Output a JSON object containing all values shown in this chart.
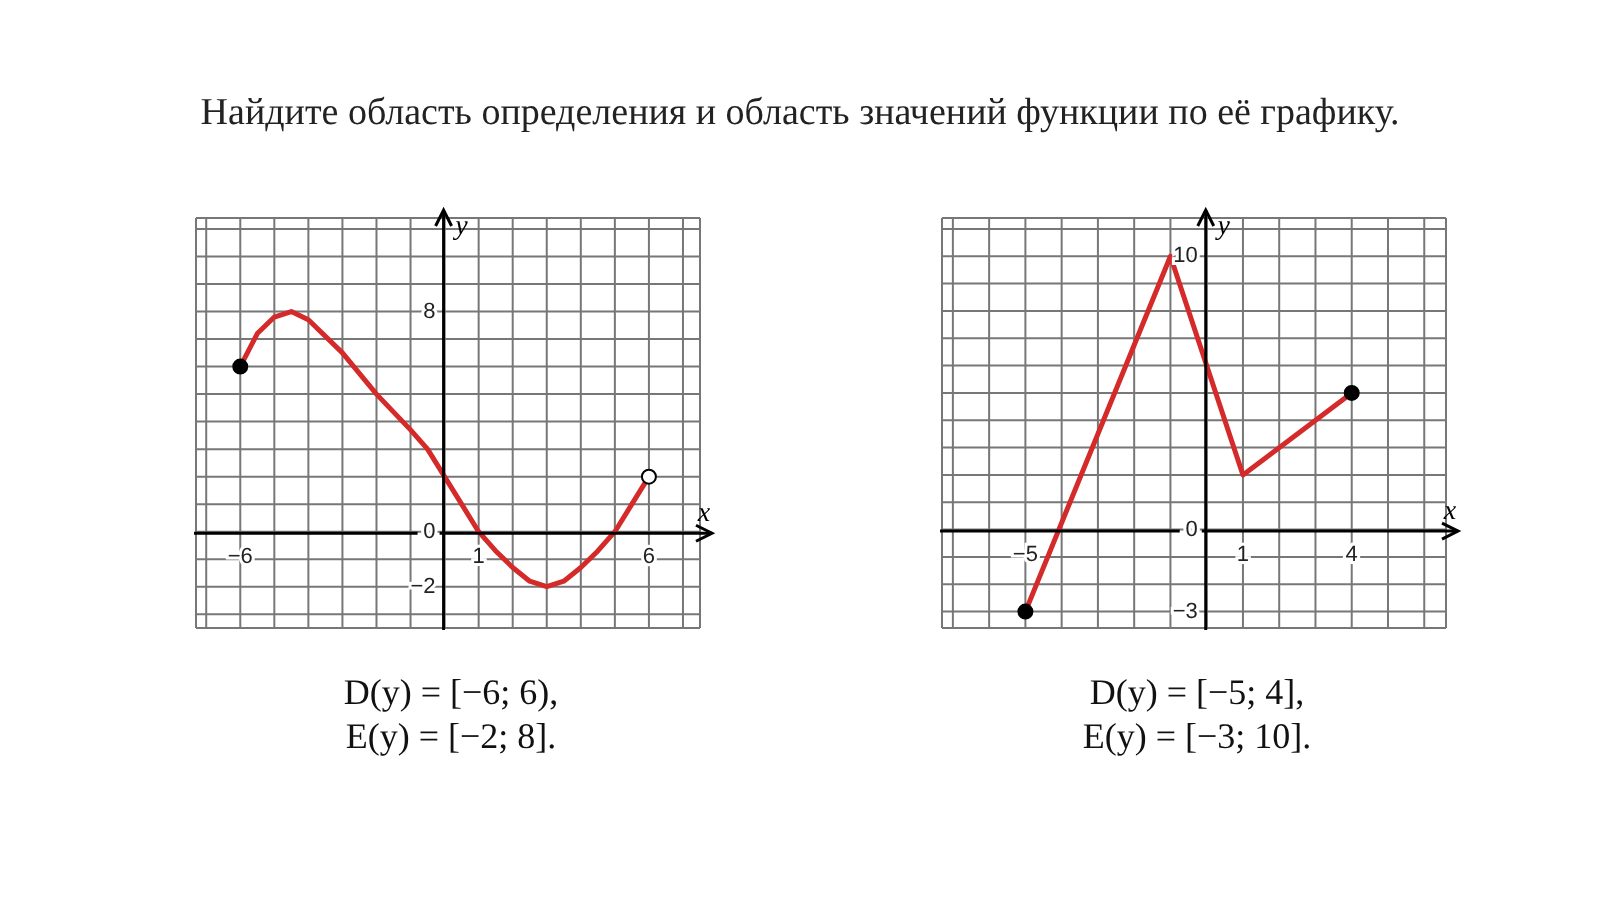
{
  "chart_data": [
    {
      "type": "line",
      "title": "Найдите область определения и область значений функции по её графику.",
      "xlabel": "x",
      "ylabel": "y",
      "xlim": [
        -7.3,
        7.5
      ],
      "ylim": [
        -3.5,
        11.4
      ],
      "xticks": [
        {
          "value": -7,
          "label": null
        },
        {
          "value": -6,
          "label": "−6"
        },
        {
          "value": -5,
          "label": null
        },
        {
          "value": -4,
          "label": null
        },
        {
          "value": -3,
          "label": null
        },
        {
          "value": -2,
          "label": null
        },
        {
          "value": -1,
          "label": null
        },
        {
          "value": 0,
          "label": null
        },
        {
          "value": 1,
          "label": "1"
        },
        {
          "value": 2,
          "label": null
        },
        {
          "value": 3,
          "label": null
        },
        {
          "value": 4,
          "label": null
        },
        {
          "value": 5,
          "label": null
        },
        {
          "value": 6,
          "label": "6"
        },
        {
          "value": 7,
          "label": null
        }
      ],
      "yticks": [
        {
          "value": -3,
          "label": null
        },
        {
          "value": -2,
          "label": "−2"
        },
        {
          "value": -1,
          "label": null
        },
        {
          "value": 0,
          "label": "0"
        },
        {
          "value": 1,
          "label": null
        },
        {
          "value": 2,
          "label": null
        },
        {
          "value": 3,
          "label": null
        },
        {
          "value": 4,
          "label": null
        },
        {
          "value": 5,
          "label": null
        },
        {
          "value": 6,
          "label": null
        },
        {
          "value": 7,
          "label": null
        },
        {
          "value": 8,
          "label": "8"
        },
        {
          "value": 9,
          "label": null
        },
        {
          "value": 10,
          "label": null
        },
        {
          "value": 11,
          "label": null
        }
      ],
      "grid": true,
      "legend": false,
      "series": [
        {
          "type": "line",
          "color": "#d42a2a",
          "x": [
            -6,
            -5.5,
            -5,
            -4.5,
            -4,
            -3,
            -2,
            -1,
            -0.5,
            0,
            0.5,
            1,
            1.5,
            2,
            2.5,
            3,
            3.5,
            4,
            4.5,
            5,
            5.5,
            6
          ],
          "values": [
            6,
            7.2,
            7.8,
            8,
            7.7,
            6.5,
            5,
            3.7,
            3,
            2,
            1,
            0,
            -0.7,
            -1.3,
            -1.8,
            -2,
            -1.8,
            -1.3,
            -0.7,
            0,
            1,
            2
          ]
        },
        {
          "type": "scatter",
          "color": "#000000",
          "x": [
            -6
          ],
          "values": [
            6
          ]
        },
        {
          "type": "scatter",
          "color": "#ffffff",
          "x": [
            6
          ],
          "values": [
            2
          ]
        }
      ],
      "annotations": [
        "D(y) = [−6; 6),",
        "E(y) = [−2; 8]."
      ]
    },
    {
      "type": "line",
      "xlabel": "x",
      "ylabel": "y",
      "xlim": [
        -7.3,
        6.6
      ],
      "ylim": [
        -3.6,
        11.4
      ],
      "xticks": [
        {
          "value": -7,
          "label": null
        },
        {
          "value": -6,
          "label": null
        },
        {
          "value": -5,
          "label": "−5"
        },
        {
          "value": -4,
          "label": null
        },
        {
          "value": -3,
          "label": null
        },
        {
          "value": -2,
          "label": null
        },
        {
          "value": -1,
          "label": null
        },
        {
          "value": 0,
          "label": null
        },
        {
          "value": 1,
          "label": "1"
        },
        {
          "value": 2,
          "label": null
        },
        {
          "value": 3,
          "label": null
        },
        {
          "value": 4,
          "label": "4"
        },
        {
          "value": 5,
          "label": null
        },
        {
          "value": 6,
          "label": null
        }
      ],
      "yticks": [
        {
          "value": -3,
          "label": "−3"
        },
        {
          "value": -2,
          "label": null
        },
        {
          "value": -1,
          "label": null
        },
        {
          "value": 0,
          "label": "0"
        },
        {
          "value": 1,
          "label": null
        },
        {
          "value": 2,
          "label": null
        },
        {
          "value": 3,
          "label": null
        },
        {
          "value": 4,
          "label": null
        },
        {
          "value": 5,
          "label": null
        },
        {
          "value": 6,
          "label": null
        },
        {
          "value": 7,
          "label": null
        },
        {
          "value": 8,
          "label": null
        },
        {
          "value": 9,
          "label": null
        },
        {
          "value": 10,
          "label": "10"
        },
        {
          "value": 11,
          "label": null
        }
      ],
      "grid": true,
      "legend": false,
      "series": [
        {
          "type": "line",
          "color": "#d42a2a",
          "x": [
            -5,
            -1,
            1,
            4
          ],
          "values": [
            -3,
            10,
            2,
            5
          ]
        },
        {
          "type": "scatter",
          "color": "#000000",
          "x": [
            -5,
            4
          ],
          "values": [
            -3,
            5
          ]
        }
      ],
      "annotations": [
        "D(y) = [−5; 4],",
        "E(y) = [−3; 10]."
      ]
    }
  ]
}
